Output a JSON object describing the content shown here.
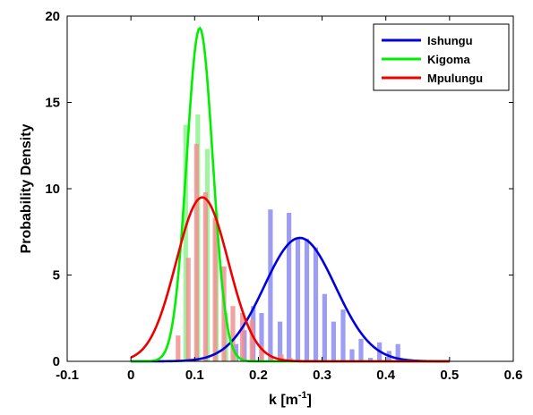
{
  "chart_data": {
    "type": "bar",
    "xlabel": "k [m",
    "xlabel_sup": "-1",
    "xlabel_suffix": "]",
    "ylabel": "Probability Density",
    "xlim": [
      -0.1,
      0.6
    ],
    "ylim": [
      0,
      20
    ],
    "x_ticks": [
      -0.1,
      0,
      0.1,
      0.2,
      0.3,
      0.4,
      0.5,
      0.6
    ],
    "x_tick_labels": [
      "-0.1",
      "0",
      "0.1",
      "0.2",
      "0.3",
      "0.4",
      "0.5",
      "0.6"
    ],
    "y_ticks": [
      0,
      5,
      10,
      15,
      20
    ],
    "y_tick_labels": [
      "0",
      "5",
      "10",
      "15",
      "20"
    ],
    "grid": false,
    "legend_position": "top-right",
    "series": [
      {
        "name": "Ishungu",
        "color": "#0000dd",
        "bar_color": "#8c8cf2",
        "histogram": {
          "x": [
            0.165,
            0.178,
            0.192,
            0.205,
            0.219,
            0.234,
            0.248,
            0.262,
            0.276,
            0.29,
            0.304,
            0.318,
            0.333,
            0.347,
            0.361,
            0.376,
            0.39,
            0.405,
            0.419
          ],
          "values": [
            1.0,
            1.8,
            3.2,
            2.8,
            8.8,
            2.3,
            8.6,
            7.1,
            7.1,
            6.6,
            3.9,
            2.3,
            3.0,
            0.7,
            1.3,
            0.2,
            1.1,
            0.6,
            1.0
          ]
        },
        "curve": {
          "mean": 0.265,
          "sd": 0.056,
          "peak": 7.15
        }
      },
      {
        "name": "Kigoma",
        "color": "#00ee00",
        "bar_color": "#90f290",
        "histogram": {
          "x": [
            0.086,
            0.105,
            0.12,
            0.134,
            0.149,
            0.163
          ],
          "values": [
            13.7,
            14.3,
            12.3,
            8.6,
            2.8,
            0.4
          ]
        },
        "curve": {
          "mean": 0.108,
          "sd": 0.0205,
          "peak": 19.3
        }
      },
      {
        "name": "Mpulungu",
        "color": "#ee0000",
        "bar_color": "#f29090",
        "histogram": {
          "x": [
            0.074,
            0.09,
            0.103,
            0.117,
            0.132,
            0.146,
            0.16,
            0.175,
            0.19,
            0.205,
            0.22,
            0.236,
            0.25,
            0.262
          ],
          "values": [
            1.5,
            6.0,
            12.6,
            9.8,
            8.3,
            5.5,
            3.2,
            2.8,
            2.4,
            0.9,
            0.3,
            0.4,
            0.2,
            0.1
          ]
        },
        "curve": {
          "mean": 0.112,
          "sd": 0.041,
          "peak": 9.5
        }
      }
    ]
  }
}
